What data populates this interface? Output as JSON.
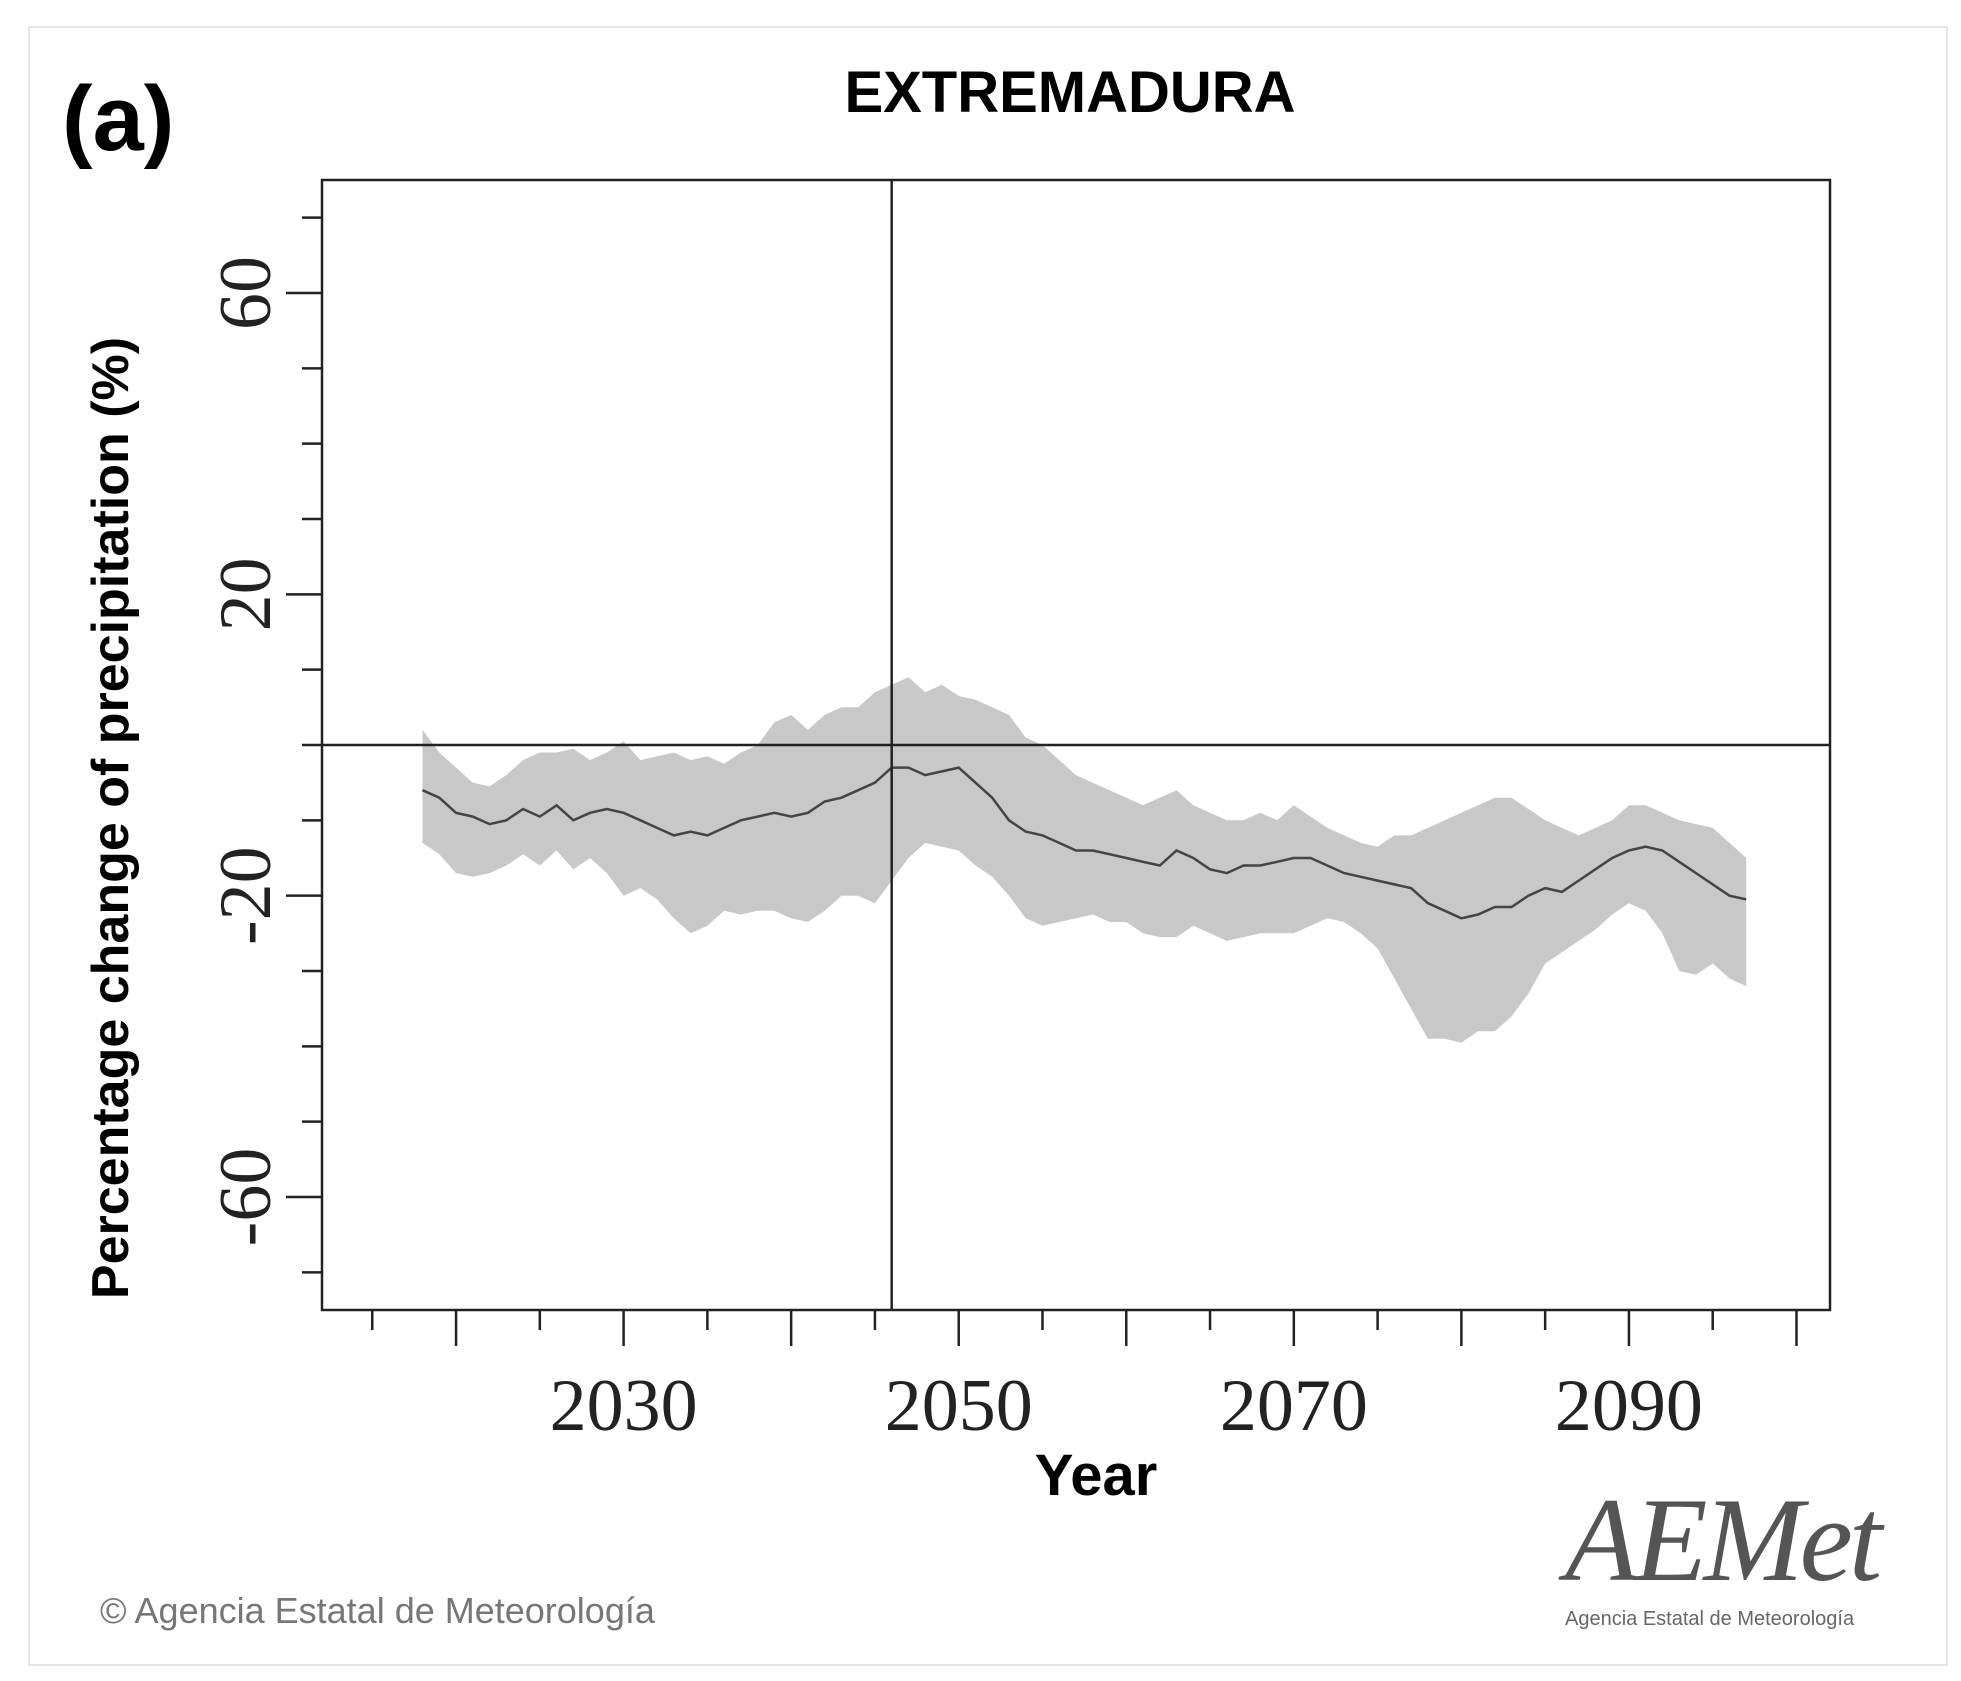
{
  "panel_label": "(a)",
  "copyright": "© Agencia Estatal de Meteorología",
  "logo": {
    "text": "AEMet",
    "subtext": "Agencia Estatal de Meteorología"
  },
  "colors": {
    "band": "#c8c8c8",
    "line": "#444444",
    "axis": "#222222"
  },
  "chart_data": {
    "type": "line",
    "title": "EXTREMADURA",
    "xlabel": "Year",
    "ylabel": "Percentage change of precipitation (%)",
    "xlim": [
      2012,
      2102
    ],
    "ylim": [
      -75,
      75
    ],
    "xticks": [
      2030,
      2050,
      2070,
      2090
    ],
    "yticks": [
      60,
      20,
      -20,
      -60
    ],
    "x_minor_step": 5,
    "y_minor_step": 10,
    "hline": 0,
    "vline": 2046,
    "series": [
      {
        "name": "mean",
        "x": [
          2018,
          2019,
          2020,
          2021,
          2022,
          2023,
          2024,
          2025,
          2026,
          2027,
          2028,
          2029,
          2030,
          2031,
          2032,
          2033,
          2034,
          2035,
          2036,
          2037,
          2038,
          2039,
          2040,
          2041,
          2042,
          2043,
          2044,
          2045,
          2046,
          2047,
          2048,
          2049,
          2050,
          2051,
          2052,
          2053,
          2054,
          2055,
          2056,
          2057,
          2058,
          2059,
          2060,
          2061,
          2062,
          2063,
          2064,
          2065,
          2066,
          2067,
          2068,
          2069,
          2070,
          2071,
          2072,
          2073,
          2074,
          2075,
          2076,
          2077,
          2078,
          2079,
          2080,
          2081,
          2082,
          2083,
          2084,
          2085,
          2086,
          2087,
          2088,
          2089,
          2090,
          2091,
          2092,
          2093,
          2094,
          2095,
          2096,
          2097
        ],
        "values": [
          -6,
          -7,
          -9,
          -9.5,
          -10.5,
          -10,
          -8.5,
          -9.5,
          -8,
          -10,
          -9,
          -8.5,
          -9,
          -10,
          -11,
          -12,
          -11.5,
          -12,
          -11,
          -10,
          -9.5,
          -9,
          -9.5,
          -9,
          -7.5,
          -7,
          -6,
          -5,
          -3,
          -3,
          -4,
          -3.5,
          -3,
          -5,
          -7,
          -10,
          -11.5,
          -12,
          -13,
          -14,
          -14,
          -14.5,
          -15,
          -15.5,
          -16,
          -14,
          -15,
          -16.5,
          -17,
          -16,
          -16,
          -15.5,
          -15,
          -15,
          -16,
          -17,
          -17.5,
          -18,
          -18.5,
          -19,
          -21,
          -22,
          -23,
          -22.5,
          -21.5,
          -21.5,
          -20,
          -19,
          -19.5,
          -18,
          -16.5,
          -15,
          -14,
          -13.5,
          -14,
          -15.5,
          -17,
          -18.5,
          -20,
          -20.5
        ]
      },
      {
        "name": "upper",
        "x": [
          2018,
          2019,
          2020,
          2021,
          2022,
          2023,
          2024,
          2025,
          2026,
          2027,
          2028,
          2029,
          2030,
          2031,
          2032,
          2033,
          2034,
          2035,
          2036,
          2037,
          2038,
          2039,
          2040,
          2041,
          2042,
          2043,
          2044,
          2045,
          2046,
          2047,
          2048,
          2049,
          2050,
          2051,
          2052,
          2053,
          2054,
          2055,
          2056,
          2057,
          2058,
          2059,
          2060,
          2061,
          2062,
          2063,
          2064,
          2065,
          2066,
          2067,
          2068,
          2069,
          2070,
          2071,
          2072,
          2073,
          2074,
          2075,
          2076,
          2077,
          2078,
          2079,
          2080,
          2081,
          2082,
          2083,
          2084,
          2085,
          2086,
          2087,
          2088,
          2089,
          2090,
          2091,
          2092,
          2093,
          2094,
          2095,
          2096,
          2097
        ],
        "values": [
          2,
          -1,
          -3,
          -5,
          -5.5,
          -4,
          -2,
          -1,
          -1,
          -0.5,
          -2,
          -1,
          0.5,
          -2,
          -1.5,
          -1,
          -2,
          -1.5,
          -2.5,
          -1,
          0,
          3,
          4,
          2,
          4,
          5,
          5,
          7,
          8,
          9,
          7,
          8,
          6.5,
          6,
          5,
          4,
          1,
          0,
          -2,
          -4,
          -5,
          -6,
          -7,
          -8,
          -7,
          -6,
          -8,
          -9,
          -10,
          -10,
          -9,
          -10,
          -8,
          -9.5,
          -11,
          -12,
          -13,
          -13.5,
          -12,
          -12,
          -11,
          -10,
          -9,
          -8,
          -7,
          -7,
          -8.5,
          -10,
          -11,
          -12,
          -11,
          -10,
          -8,
          -8,
          -9,
          -10,
          -10.5,
          -11,
          -13,
          -15
        ]
      },
      {
        "name": "lower",
        "x": [
          2018,
          2019,
          2020,
          2021,
          2022,
          2023,
          2024,
          2025,
          2026,
          2027,
          2028,
          2029,
          2030,
          2031,
          2032,
          2033,
          2034,
          2035,
          2036,
          2037,
          2038,
          2039,
          2040,
          2041,
          2042,
          2043,
          2044,
          2045,
          2046,
          2047,
          2048,
          2049,
          2050,
          2051,
          2052,
          2053,
          2054,
          2055,
          2056,
          2057,
          2058,
          2059,
          2060,
          2061,
          2062,
          2063,
          2064,
          2065,
          2066,
          2067,
          2068,
          2069,
          2070,
          2071,
          2072,
          2073,
          2074,
          2075,
          2076,
          2077,
          2078,
          2079,
          2080,
          2081,
          2082,
          2083,
          2084,
          2085,
          2086,
          2087,
          2088,
          2089,
          2090,
          2091,
          2092,
          2093,
          2094,
          2095,
          2096,
          2097
        ],
        "values": [
          -13,
          -14.5,
          -17,
          -17.5,
          -17,
          -16,
          -14.5,
          -16,
          -14,
          -16.5,
          -15,
          -17,
          -20,
          -19,
          -20.5,
          -23,
          -25,
          -24,
          -22,
          -22.5,
          -22,
          -22,
          -23,
          -23.5,
          -22,
          -20,
          -20,
          -21,
          -18,
          -15,
          -13,
          -13.5,
          -14,
          -16,
          -17.5,
          -20,
          -23,
          -24,
          -23.5,
          -23,
          -22.5,
          -23.5,
          -23.5,
          -25,
          -25.5,
          -25.5,
          -24,
          -25,
          -26,
          -25.5,
          -25,
          -25,
          -25,
          -24,
          -23,
          -23.5,
          -25,
          -27,
          -31,
          -35,
          -39,
          -39,
          -39.5,
          -38,
          -38,
          -36,
          -33,
          -29,
          -27.5,
          -26,
          -24.5,
          -22.5,
          -21,
          -22,
          -25,
          -30,
          -30.5,
          -29,
          -31,
          -32
        ]
      }
    ]
  }
}
